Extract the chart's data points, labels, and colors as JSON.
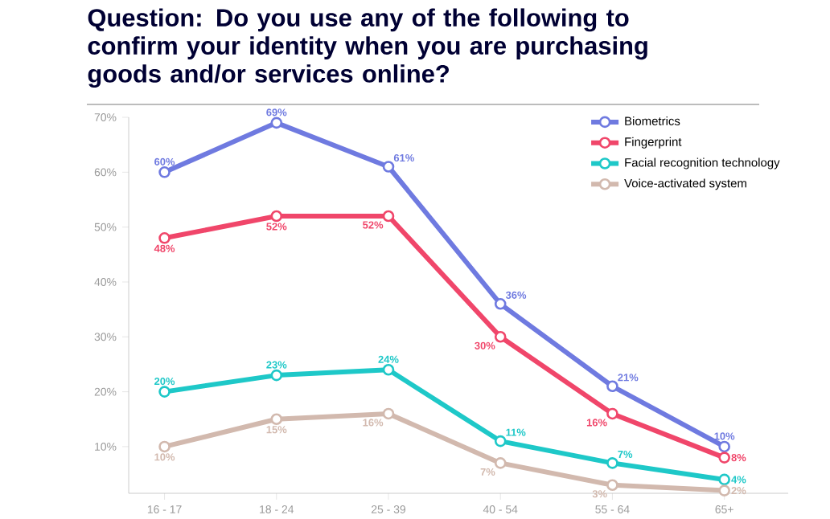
{
  "chart_data": {
    "type": "line",
    "title": "Question: Do you use any of the following to confirm your identity when you are purchasing goods and/or services online?",
    "categories": [
      "16 - 17",
      "18 - 24",
      "25 - 39",
      "40 - 54",
      "55 - 64",
      "65+"
    ],
    "series": [
      {
        "name": "Biometrics",
        "color": "#6f7ae0",
        "values": [
          60,
          69,
          61,
          36,
          21,
          10
        ],
        "value_labels": [
          "60%",
          "69%",
          "61%",
          "36%",
          "21%",
          "10%"
        ]
      },
      {
        "name": "Fingerprint",
        "color": "#f0466a",
        "values": [
          48,
          52,
          52,
          30,
          16,
          8
        ],
        "value_labels": [
          "48%",
          "52%",
          "52%",
          "30%",
          "16%",
          "8%"
        ]
      },
      {
        "name": "Facial recognition technology",
        "color": "#1ec8c8",
        "values": [
          20,
          23,
          24,
          11,
          7,
          4
        ],
        "value_labels": [
          "20%",
          "23%",
          "24%",
          "11%",
          "7%",
          "4%"
        ]
      },
      {
        "name": "Voice-activated system",
        "color": "#d2b9ae",
        "values": [
          10,
          15,
          16,
          7,
          3,
          2
        ],
        "value_labels": [
          "10%",
          "15%",
          "16%",
          "7%",
          "3%",
          "2%"
        ]
      }
    ],
    "ylim": [
      1.5,
      70
    ],
    "yticks": [
      {
        "value": 10,
        "label": "10%"
      },
      {
        "value": 20,
        "label": "20%"
      },
      {
        "value": 30,
        "label": "30%"
      },
      {
        "value": 40,
        "label": "40%"
      },
      {
        "value": 50,
        "label": "50%"
      },
      {
        "value": 60,
        "label": "60%"
      },
      {
        "value": 70,
        "label": "70%"
      }
    ],
    "grid": false,
    "legend": "top right",
    "marker": "circle",
    "line_style": "solid"
  }
}
